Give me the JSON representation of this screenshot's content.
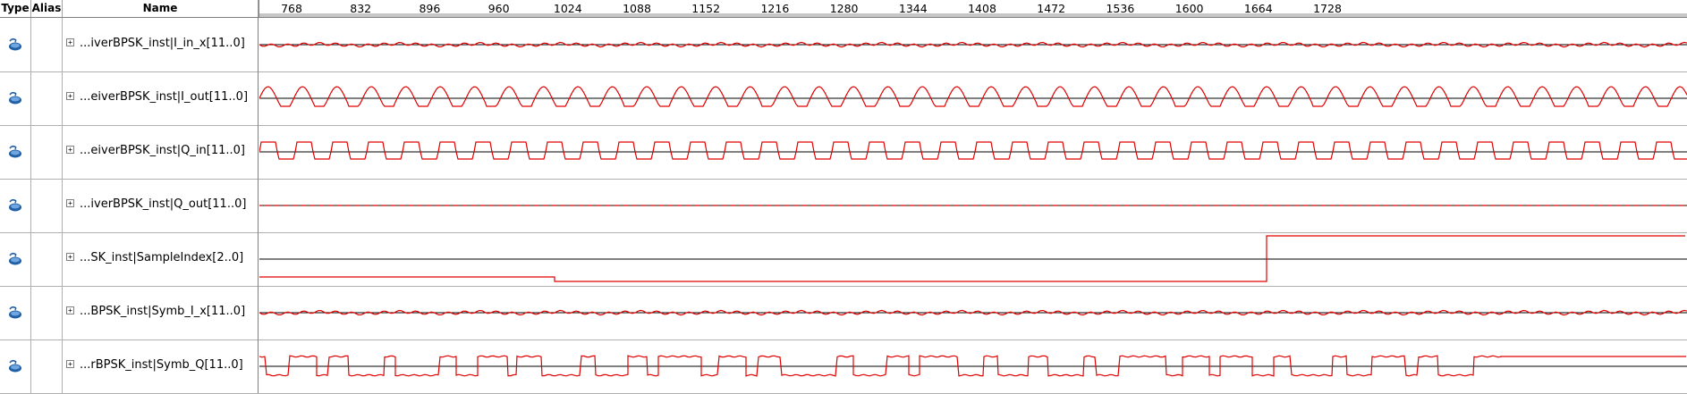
{
  "header": {
    "type_label": "Type",
    "alias_label": "Alias",
    "name_label": "Name"
  },
  "ruler": {
    "ticks": [
      "768",
      "832",
      "896",
      "960",
      "1024",
      "1088",
      "1152",
      "1216",
      "1280",
      "1344",
      "1408",
      "1472",
      "1536",
      "1600",
      "1664",
      "1728"
    ]
  },
  "signals": [
    {
      "name": "...iverBPSK_inst|I_in_x[11..0]",
      "expand": "+",
      "icon": "output-signal-icon",
      "wave": "flat"
    },
    {
      "name": "...eiverBPSK_inst|I_out[11..0]",
      "expand": "+",
      "icon": "output-signal-icon",
      "wave": "sine"
    },
    {
      "name": "...eiverBPSK_inst|Q_in[11..0]",
      "expand": "+",
      "icon": "output-signal-icon",
      "wave": "square"
    },
    {
      "name": "...iverBPSK_inst|Q_out[11..0]",
      "expand": "+",
      "icon": "output-signal-icon",
      "wave": "zero"
    },
    {
      "name": "...SK_inst|SampleIndex[2..0]",
      "expand": "+",
      "icon": "output-signal-icon",
      "wave": "steps"
    },
    {
      "name": "...BPSK_inst|Symb_I_x[11..0]",
      "expand": "+",
      "icon": "output-signal-icon",
      "wave": "flat"
    },
    {
      "name": "...rBPSK_inst|Symb_Q[11..0]",
      "expand": "+",
      "icon": "output-signal-icon",
      "wave": "blocks"
    }
  ],
  "colors": {
    "wave": "#e00000",
    "axis": "#000000"
  }
}
